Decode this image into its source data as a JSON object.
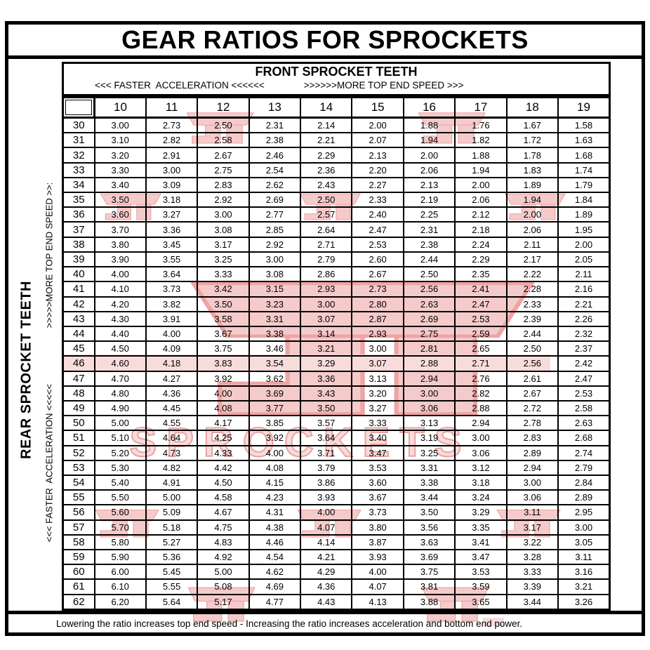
{
  "page_title": "GEAR RATIOS FOR SPROCKETS",
  "front_axis": {
    "title": "FRONT SPROCKET TEETH",
    "accel_label": "<<< FASTER  ACCELERATION <<<<<<",
    "speed_label": ">>>>>>MORE TOP END SPEED >>>"
  },
  "rear_axis": {
    "title": "REAR SPROCKET TEETH",
    "direction_label": "<<< FASTER  ACCELERATION <<<<<                      >>>>>MORE TOP END SPEED >>:"
  },
  "footnote": "Lowering the ratio increases top end speed - Increasing the ratio increases acceleration and bottom end power.",
  "watermark": {
    "text": "SPROCKETS",
    "fill": "#f5caca",
    "stroke": "#eda5a3"
  },
  "colors": {
    "border": "#000000",
    "background": "#ffffff",
    "watermark_pink": "#f5caca"
  },
  "chart_data": {
    "type": "table",
    "title": "GEAR RATIOS FOR SPROCKETS",
    "columns_label": "FRONT SPROCKET TEETH",
    "rows_label": "REAR SPROCKET TEETH",
    "front_teeth": [
      "10",
      "11",
      "12",
      "13",
      "14",
      "15",
      "16",
      "17",
      "18",
      "19"
    ],
    "rear_teeth": [
      "30",
      "31",
      "32",
      "33",
      "34",
      "35",
      "36",
      "37",
      "38",
      "39",
      "40",
      "41",
      "42",
      "43",
      "44",
      "45",
      "46",
      "47",
      "48",
      "49",
      "50",
      "51",
      "52",
      "53",
      "54",
      "55",
      "56",
      "57",
      "58",
      "59",
      "60",
      "61",
      "62"
    ],
    "ratios": [
      [
        "3.00",
        "2.73",
        "2.50",
        "2.31",
        "2.14",
        "2.00",
        "1.88",
        "1.76",
        "1.67",
        "1.58"
      ],
      [
        "3.10",
        "2.82",
        "2.58",
        "2.38",
        "2.21",
        "2.07",
        "1.94",
        "1.82",
        "1.72",
        "1.63"
      ],
      [
        "3.20",
        "2.91",
        "2.67",
        "2.46",
        "2.29",
        "2.13",
        "2.00",
        "1.88",
        "1.78",
        "1.68"
      ],
      [
        "3.30",
        "3.00",
        "2.75",
        "2.54",
        "2.36",
        "2.20",
        "2.06",
        "1.94",
        "1.83",
        "1.74"
      ],
      [
        "3.40",
        "3.09",
        "2.83",
        "2.62",
        "2.43",
        "2.27",
        "2.13",
        "2.00",
        "1.89",
        "1.79"
      ],
      [
        "3.50",
        "3.18",
        "2.92",
        "2.69",
        "2.50",
        "2.33",
        "2.19",
        "2.06",
        "1.94",
        "1.84"
      ],
      [
        "3.60",
        "3.27",
        "3.00",
        "2.77",
        "2.57",
        "2.40",
        "2.25",
        "2.12",
        "2.00",
        "1.89"
      ],
      [
        "3.70",
        "3.36",
        "3.08",
        "2.85",
        "2.64",
        "2.47",
        "2.31",
        "2.18",
        "2.06",
        "1.95"
      ],
      [
        "3.80",
        "3.45",
        "3.17",
        "2.92",
        "2.71",
        "2.53",
        "2.38",
        "2.24",
        "2.11",
        "2.00"
      ],
      [
        "3.90",
        "3.55",
        "3.25",
        "3.00",
        "2.79",
        "2.60",
        "2.44",
        "2.29",
        "2.17",
        "2.05"
      ],
      [
        "4.00",
        "3.64",
        "3.33",
        "3.08",
        "2.86",
        "2.67",
        "2.50",
        "2.35",
        "2.22",
        "2.11"
      ],
      [
        "4.10",
        "3.73",
        "3.42",
        "3.15",
        "2.93",
        "2.73",
        "2.56",
        "2.41",
        "2.28",
        "2.16"
      ],
      [
        "4.20",
        "3.82",
        "3.50",
        "3.23",
        "3.00",
        "2.80",
        "2.63",
        "2.47",
        "2.33",
        "2.21"
      ],
      [
        "4.30",
        "3.91",
        "3.58",
        "3.31",
        "3.07",
        "2.87",
        "2.69",
        "2.53",
        "2.39",
        "2.26"
      ],
      [
        "4.40",
        "4.00",
        "3.67",
        "3.38",
        "3.14",
        "2.93",
        "2.75",
        "2.59",
        "2.44",
        "2.32"
      ],
      [
        "4.50",
        "4.09",
        "3.75",
        "3.46",
        "3.21",
        "3.00",
        "2.81",
        "2.65",
        "2.50",
        "2.37"
      ],
      [
        "4.60",
        "4.18",
        "3.83",
        "3.54",
        "3.29",
        "3.07",
        "2.88",
        "2.71",
        "2.56",
        "2.42"
      ],
      [
        "4.70",
        "4.27",
        "3.92",
        "3.62",
        "3.36",
        "3.13",
        "2.94",
        "2.76",
        "2.61",
        "2.47"
      ],
      [
        "4.80",
        "4.36",
        "4.00",
        "3.69",
        "3.43",
        "3.20",
        "3.00",
        "2.82",
        "2.67",
        "2.53"
      ],
      [
        "4.90",
        "4.45",
        "4.08",
        "3.77",
        "3.50",
        "3.27",
        "3.06",
        "2.88",
        "2.72",
        "2.58"
      ],
      [
        "5.00",
        "4.55",
        "4.17",
        "3.85",
        "3.57",
        "3.33",
        "3.13",
        "2.94",
        "2.78",
        "2.63"
      ],
      [
        "5.10",
        "4.64",
        "4.25",
        "3.92",
        "3.64",
        "3.40",
        "3.19",
        "3.00",
        "2.83",
        "2.68"
      ],
      [
        "5.20",
        "4.73",
        "4.33",
        "4.00",
        "3.71",
        "3.47",
        "3.25",
        "3.06",
        "2.89",
        "2.74"
      ],
      [
        "5.30",
        "4.82",
        "4.42",
        "4.08",
        "3.79",
        "3.53",
        "3.31",
        "3.12",
        "2.94",
        "2.79"
      ],
      [
        "5.40",
        "4.91",
        "4.50",
        "4.15",
        "3.86",
        "3.60",
        "3.38",
        "3.18",
        "3.00",
        "2.84"
      ],
      [
        "5.50",
        "5.00",
        "4.58",
        "4.23",
        "3.93",
        "3.67",
        "3.44",
        "3.24",
        "3.06",
        "2.89"
      ],
      [
        "5.60",
        "5.09",
        "4.67",
        "4.31",
        "4.00",
        "3.73",
        "3.50",
        "3.29",
        "3.11",
        "2.95"
      ],
      [
        "5.70",
        "5.18",
        "4.75",
        "4.38",
        "4.07",
        "3.80",
        "3.56",
        "3.35",
        "3.17",
        "3.00"
      ],
      [
        "5.80",
        "5.27",
        "4.83",
        "4.46",
        "4.14",
        "3.87",
        "3.63",
        "3.41",
        "3.22",
        "3.05"
      ],
      [
        "5.90",
        "5.36",
        "4.92",
        "4.54",
        "4.21",
        "3.93",
        "3.69",
        "3.47",
        "3.28",
        "3.11"
      ],
      [
        "6.00",
        "5.45",
        "5.00",
        "4.62",
        "4.29",
        "4.00",
        "3.75",
        "3.53",
        "3.33",
        "3.16"
      ],
      [
        "6.10",
        "5.55",
        "5.08",
        "4.69",
        "4.36",
        "4.07",
        "3.81",
        "3.59",
        "3.39",
        "3.21"
      ],
      [
        "6.20",
        "5.64",
        "5.17",
        "4.77",
        "4.43",
        "4.13",
        "3.88",
        "3.65",
        "3.44",
        "3.26"
      ]
    ]
  }
}
